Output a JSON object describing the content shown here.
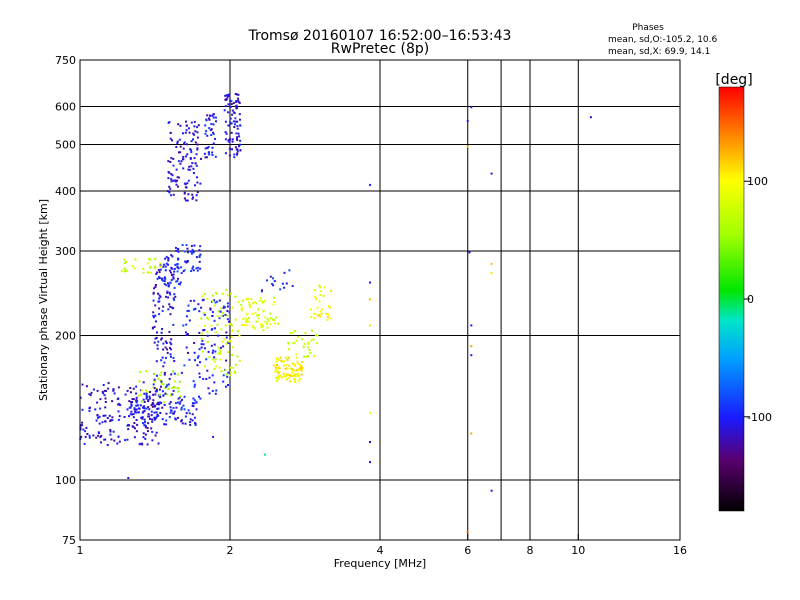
{
  "header": {
    "title_line1": "Tromsø 20160107 16:52:00–16:53:43",
    "title_line2": "RwPretec (8p)"
  },
  "phases": {
    "heading": "Phases",
    "line_o": "mean, sd,O:-105.2, 10.6",
    "line_x": "mean, sd,X:  69.9, 14.1"
  },
  "chart_data": {
    "type": "scatter",
    "title": "Tromsø 20160107 16:52:00–16:53:43",
    "subtitle": "RwPretec (8p)",
    "xlabel": "Frequency [MHz]",
    "ylabel": "Stationary phase Virtual Height [km]",
    "x_scale": "log",
    "y_scale": "log",
    "xlim": [
      1,
      16
    ],
    "ylim": [
      75,
      750
    ],
    "x_ticks": [
      1,
      2,
      4,
      6,
      8,
      10,
      16
    ],
    "x_tick_labels": [
      "1",
      "2",
      "4",
      "6",
      "8",
      "10",
      "16"
    ],
    "x_grid": [
      2,
      4,
      6,
      7,
      8,
      10
    ],
    "y_ticks": [
      75,
      100,
      200,
      300,
      400,
      500,
      600,
      750
    ],
    "y_tick_labels": [
      "75",
      "100",
      "200",
      "300",
      "400",
      "500",
      "600",
      "750"
    ],
    "y_grid": [
      100,
      200,
      300,
      400,
      500,
      600
    ],
    "colorbar": {
      "label": "[deg]",
      "range": [
        -180,
        180
      ],
      "ticks": [
        100,
        0,
        -100
      ],
      "tick_labels": [
        "100",
        "0",
        "-100"
      ]
    },
    "clusters": [
      {
        "f": [
          1.0,
          1.45
        ],
        "h": [
          118,
          160
        ],
        "phase": -110,
        "n": 190
      },
      {
        "f": [
          1.25,
          1.75
        ],
        "h": [
          130,
          150
        ],
        "phase": -105,
        "n": 120
      },
      {
        "f": [
          1.3,
          1.6
        ],
        "h": [
          145,
          170
        ],
        "phase": 60,
        "n": 40
      },
      {
        "f": [
          1.4,
          1.55
        ],
        "h": [
          150,
          280
        ],
        "phase": -108,
        "n": 110
      },
      {
        "f": [
          1.45,
          1.6
        ],
        "h": [
          240,
          295
        ],
        "phase": -100,
        "n": 50
      },
      {
        "f": [
          1.2,
          1.45
        ],
        "h": [
          270,
          290
        ],
        "phase": 75,
        "n": 25
      },
      {
        "f": [
          1.55,
          1.75
        ],
        "h": [
          272,
          310
        ],
        "phase": -95,
        "n": 45
      },
      {
        "f": [
          1.5,
          1.75
        ],
        "h": [
          380,
          560
        ],
        "phase": -110,
        "n": 120
      },
      {
        "f": [
          1.78,
          1.88
        ],
        "h": [
          470,
          580
        ],
        "phase": -105,
        "n": 40
      },
      {
        "f": [
          1.95,
          2.1
        ],
        "h": [
          470,
          640
        ],
        "phase": -110,
        "n": 90
      },
      {
        "f": [
          1.6,
          2.0
        ],
        "h": [
          150,
          240
        ],
        "phase": -100,
        "n": 110
      },
      {
        "f": [
          1.75,
          2.1
        ],
        "h": [
          165,
          250
        ],
        "phase": 75,
        "n": 80
      },
      {
        "f": [
          2.1,
          2.5
        ],
        "h": [
          205,
          240
        ],
        "phase": 85,
        "n": 70
      },
      {
        "f": [
          2.45,
          2.8
        ],
        "h": [
          160,
          180
        ],
        "phase": 100,
        "n": 90
      },
      {
        "f": [
          2.6,
          3.0
        ],
        "h": [
          180,
          205
        ],
        "phase": 70,
        "n": 30
      },
      {
        "f": [
          2.9,
          3.2
        ],
        "h": [
          215,
          255
        ],
        "phase": 95,
        "n": 30
      },
      {
        "f": [
          2.3,
          2.7
        ],
        "h": [
          245,
          275
        ],
        "phase": -100,
        "n": 15
      }
    ],
    "points": [
      {
        "f": 3.82,
        "h": 412,
        "phase": -100
      },
      {
        "f": 3.82,
        "h": 258,
        "phase": -105
      },
      {
        "f": 3.82,
        "h": 238,
        "phase": 120
      },
      {
        "f": 3.82,
        "h": 210,
        "phase": 110
      },
      {
        "f": 3.82,
        "h": 138,
        "phase": 95
      },
      {
        "f": 3.82,
        "h": 120,
        "phase": -110
      },
      {
        "f": 3.82,
        "h": 109,
        "phase": -105
      },
      {
        "f": 6.1,
        "h": 598,
        "phase": -110
      },
      {
        "f": 6.0,
        "h": 560,
        "phase": -105
      },
      {
        "f": 6.0,
        "h": 495,
        "phase": 120
      },
      {
        "f": 6.05,
        "h": 298,
        "phase": -105
      },
      {
        "f": 6.1,
        "h": 210,
        "phase": -100
      },
      {
        "f": 6.1,
        "h": 190,
        "phase": 130
      },
      {
        "f": 6.1,
        "h": 182,
        "phase": -105
      },
      {
        "f": 6.1,
        "h": 125,
        "phase": 130
      },
      {
        "f": 6.0,
        "h": 78,
        "phase": 150
      },
      {
        "f": 6.7,
        "h": 435,
        "phase": -105
      },
      {
        "f": 6.7,
        "h": 282,
        "phase": 120
      },
      {
        "f": 6.7,
        "h": 270,
        "phase": 110
      },
      {
        "f": 6.7,
        "h": 95,
        "phase": -105
      },
      {
        "f": 10.6,
        "h": 570,
        "phase": -110
      },
      {
        "f": 1.25,
        "h": 101,
        "phase": -105
      },
      {
        "f": 1.85,
        "h": 123,
        "phase": -100
      },
      {
        "f": 2.35,
        "h": 113,
        "phase": -10
      }
    ]
  }
}
